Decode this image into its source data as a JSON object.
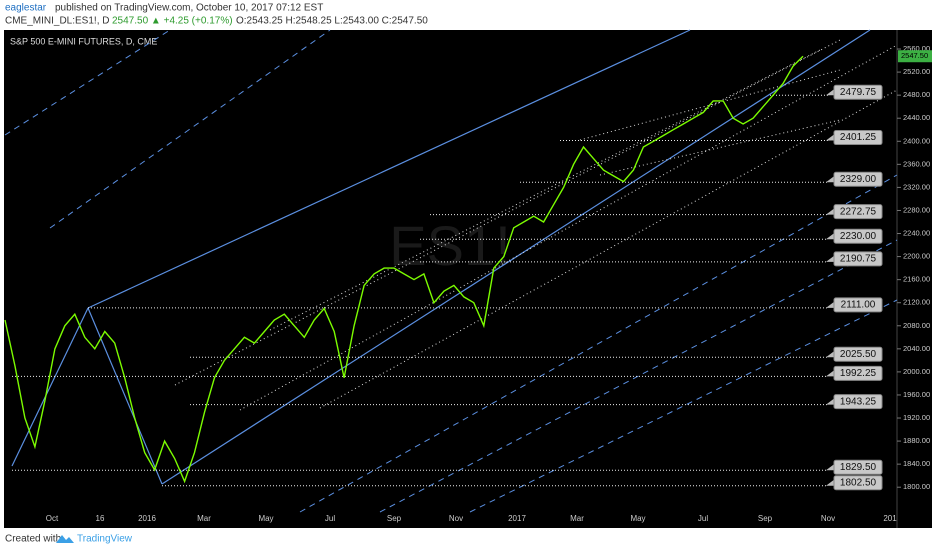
{
  "header": {
    "author": "eaglestar",
    "published": "published on TradingView.com, October 10, 2017 07:12 EST",
    "symbol": "CME_MINI_DL:ES1!, D",
    "quote": "2547.50 ▲ +4.25 (+0.17%)",
    "ohlc": "O:2543.25 H:2548.25 L:2543.00 C:2547.50"
  },
  "chart_data": {
    "type": "line",
    "title": "S&P 500 E-MINI FUTURES, D, CME",
    "watermark": "ES1!",
    "series": [
      {
        "name": "ES1!",
        "color": "#7CFC00",
        "values": [
          2090,
          2010,
          1920,
          1870,
          1950,
          2040,
          2080,
          2100,
          2060,
          2040,
          2070,
          2050,
          1990,
          1920,
          1860,
          1830,
          1880,
          1850,
          1810,
          1860,
          1930,
          1990,
          2020,
          2040,
          2060,
          2050,
          2070,
          2090,
          2100,
          2080,
          2060,
          2090,
          2110,
          2070,
          1990,
          2080,
          2150,
          2170,
          2180,
          2180,
          2170,
          2160,
          2170,
          2120,
          2140,
          2150,
          2130,
          2120,
          2080,
          2180,
          2200,
          2250,
          2260,
          2270,
          2260,
          2290,
          2320,
          2360,
          2390,
          2370,
          2350,
          2340,
          2330,
          2350,
          2390,
          2400,
          2410,
          2420,
          2430,
          2440,
          2450,
          2470,
          2470,
          2440,
          2430,
          2440,
          2460,
          2480,
          2500,
          2530,
          2547.5
        ]
      }
    ],
    "ylim": [
      1757,
      2593
    ],
    "yticks": [
      {
        "value": 1800,
        "label": "1800.00"
      },
      {
        "value": 1840,
        "label": "1840.00"
      },
      {
        "value": 1880,
        "label": "1880.00"
      },
      {
        "value": 1920,
        "label": "1920.00"
      },
      {
        "value": 1960,
        "label": "1960.00"
      },
      {
        "value": 2000,
        "label": "2000.00"
      },
      {
        "value": 2040,
        "label": "2040.00"
      },
      {
        "value": 2080,
        "label": "2080.00"
      },
      {
        "value": 2120,
        "label": "2120.00"
      },
      {
        "value": 2160,
        "label": "2160.00"
      },
      {
        "value": 2200,
        "label": "2200.00"
      },
      {
        "value": 2240,
        "label": "2240.00"
      },
      {
        "value": 2280,
        "label": "2280.00"
      },
      {
        "value": 2320,
        "label": "2320.00"
      },
      {
        "value": 2360,
        "label": "2360.00"
      },
      {
        "value": 2400,
        "label": "2400.00"
      },
      {
        "value": 2440,
        "label": "2440.00"
      },
      {
        "value": 2480,
        "label": "2480.00"
      },
      {
        "value": 2520,
        "label": "2520.00"
      },
      {
        "value": 2560,
        "label": "2560.00"
      }
    ],
    "x_labels": [
      "Oct",
      "16",
      "2016",
      "Mar",
      "May",
      "Jul",
      "Sep",
      "Nov",
      "2017",
      "Mar",
      "May",
      "Jul",
      "Sep",
      "Nov",
      "201"
    ],
    "last_price": {
      "value": 2547.5,
      "label": "2547.50"
    },
    "levels": [
      {
        "value": 2479.75,
        "label": "2479.75"
      },
      {
        "value": 2401.25,
        "label": "2401.25"
      },
      {
        "value": 2329,
        "label": "2329.00"
      },
      {
        "value": 2272.75,
        "label": "2272.75"
      },
      {
        "value": 2230,
        "label": "2230.00"
      },
      {
        "value": 2190.75,
        "label": "2190.75"
      },
      {
        "value": 2111,
        "label": "2111.00"
      },
      {
        "value": 2025.5,
        "label": "2025.50"
      },
      {
        "value": 1992.25,
        "label": "1992.25"
      },
      {
        "value": 1943.25,
        "label": "1943.25"
      },
      {
        "value": 1829.5,
        "label": "1829.50"
      },
      {
        "value": 1802.5,
        "label": "1802.50"
      }
    ]
  },
  "footer": {
    "created": "Created with",
    "brand": "TradingView"
  }
}
